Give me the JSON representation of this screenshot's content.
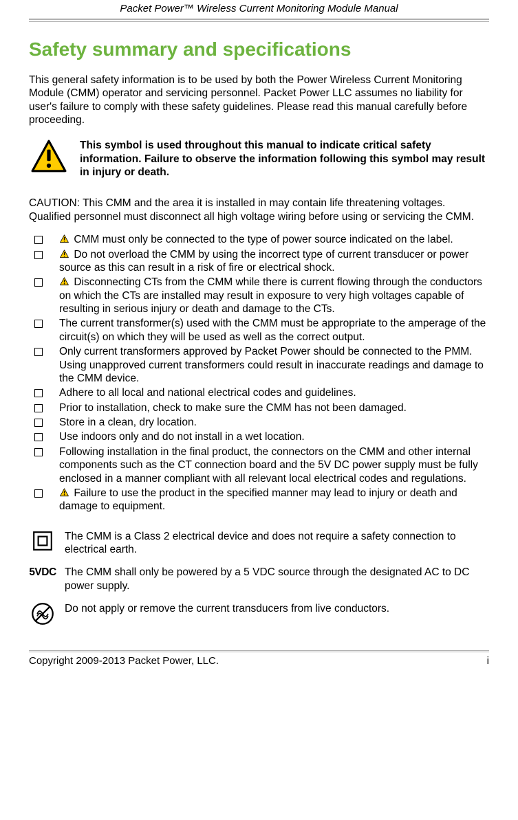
{
  "colors": {
    "heading_color": "#6db33f",
    "text_color": "#000000",
    "rule_color": "#b0b0b0",
    "warn_fill": "#ffcc00",
    "warn_stroke": "#000000",
    "background": "#ffffff"
  },
  "typography": {
    "body_font": "Arial",
    "body_size_pt": 11.5,
    "heading_size_pt": 21,
    "heading_weight": "bold",
    "header_italic": true
  },
  "header": {
    "title": "Packet Power™ Wireless Current Monitoring Module Manual"
  },
  "main": {
    "h1": "Safety summary and specifications",
    "intro": "This general safety information is to be used by both the Power Wireless Current Monitoring Module (CMM) operator and servicing personnel. Packet Power LLC assumes no liability for user's failure to comply with these safety guidelines. Please read this manual carefully before proceeding.",
    "warning_block": "This symbol is used throughout this manual to indicate critical safety information. Failure to observe the information following this symbol may result in injury or death.",
    "caution": "CAUTION:  This CMM and the area it is installed in may contain life threatening voltages.  Qualified personnel must disconnect all high voltage wiring before using or servicing the CMM.",
    "checklist": [
      {
        "warn": true,
        "text": "CMM must only be connected to the type of power source indicated on the label."
      },
      {
        "warn": true,
        "text": "Do not overload the CMM by using the incorrect type of current transducer or power source as this can result in a risk of fire or electrical shock."
      },
      {
        "warn": true,
        "text": "Disconnecting CTs from the CMM while there is current flowing through the conductors on which the CTs are installed may result in exposure to very high voltages capable of resulting in serious injury or death and damage to the CTs."
      },
      {
        "warn": false,
        "text": "The current transformer(s) used with the CMM must be appropriate to the amperage of the circuit(s) on which they will be used as well as the correct output."
      },
      {
        "warn": false,
        "text": "Only current transformers approved by Packet Power should be connected to the PMM. Using unapproved current transformers could result in inaccurate readings and damage to the CMM device."
      },
      {
        "warn": false,
        "text": "Adhere to all local and national electrical codes and guidelines."
      },
      {
        "warn": false,
        "text": "Prior to installation, check to make sure the CMM has not been damaged."
      },
      {
        "warn": false,
        "text": "Store in a clean, dry location."
      },
      {
        "warn": false,
        "text": "Use indoors only and do not install in a wet location."
      },
      {
        "warn": false,
        "text": "Following installation in the final product, the connectors on the CMM and other internal components such as the CT connection board and the 5V DC power supply must be fully enclosed in a manner compliant with all relevant local electrical codes and regulations."
      },
      {
        "warn": true,
        "text": "Failure to use the product in the specified manner may lead to injury or death and damage to equipment."
      }
    ],
    "notes": [
      {
        "icon": "class2",
        "text": "The CMM is a Class 2 electrical device and does not require a safety connection to electrical earth."
      },
      {
        "icon": "5vdc",
        "label": "5VDC",
        "text": "The CMM shall only be powered by a 5 VDC source through the designated AC to DC power supply."
      },
      {
        "icon": "no-live-ct",
        "text": "Do not apply or remove the current transducers from live conductors."
      }
    ]
  },
  "footer": {
    "left": "Copyright 2009-2013 Packet Power, LLC.",
    "right": "i"
  }
}
